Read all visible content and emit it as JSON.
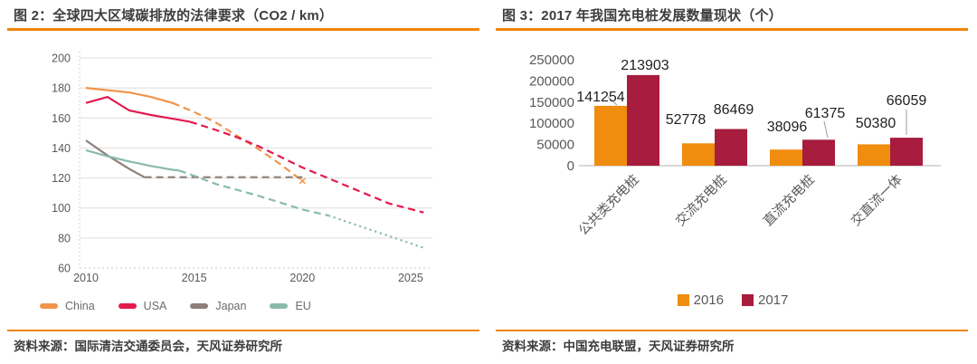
{
  "accent_color": "#F0840A",
  "left_panel": {
    "title": "图 2：全球四大区域碳排放的法律要求（CO2 / km）",
    "source": "资料来源：国际清洁交通委员会，天风证券研究所",
    "chart_data": {
      "type": "line",
      "title": "全球四大区域碳排放的法律要求（CO2 / km）",
      "xlabel": "",
      "ylabel": "",
      "xlim": [
        2009.6,
        2026.2
      ],
      "ylim": [
        60,
        200
      ],
      "yticks": [
        60,
        80,
        100,
        120,
        140,
        160,
        180,
        200
      ],
      "xticks": [
        2010,
        2015,
        2020,
        2025
      ],
      "grid": "horizontal",
      "legend_position": "bottom-left",
      "series": [
        {
          "name": "China",
          "color": "#F0944A",
          "end_marker": "x",
          "segments": [
            {
              "style": "solid",
              "points": [
                [
                  2010,
                  180
                ],
                [
                  2011,
                  178.5
                ],
                [
                  2012,
                  177
                ],
                [
                  2013,
                  174
                ],
                [
                  2014,
                  170
                ]
              ]
            },
            {
              "style": "dashed",
              "points": [
                [
                  2014,
                  170
                ],
                [
                  2015,
                  164
                ],
                [
                  2016,
                  157
                ],
                [
                  2017,
                  148
                ],
                [
                  2018,
                  139
                ],
                [
                  2019,
                  129
                ],
                [
                  2020,
                  118
                ]
              ]
            }
          ]
        },
        {
          "name": "USA",
          "color": "#E41A4D",
          "segments": [
            {
              "style": "solid",
              "points": [
                [
                  2010,
                  170
                ],
                [
                  2011,
                  174
                ],
                [
                  2012,
                  165
                ],
                [
                  2013,
                  162
                ],
                [
                  2014,
                  159.5
                ],
                [
                  2014.8,
                  157.5
                ]
              ]
            },
            {
              "style": "dashed",
              "points": [
                [
                  2014.8,
                  157.5
                ],
                [
                  2016,
                  152
                ],
                [
                  2017,
                  147
                ],
                [
                  2018,
                  141
                ],
                [
                  2019,
                  134
                ],
                [
                  2020,
                  127
                ],
                [
                  2021,
                  121
                ],
                [
                  2022,
                  115
                ],
                [
                  2023,
                  109
                ],
                [
                  2024,
                  103
                ],
                [
                  2025.6,
                  97
                ]
              ]
            }
          ]
        },
        {
          "name": "Japan",
          "color": "#8C8078",
          "segments": [
            {
              "style": "solid",
              "points": [
                [
                  2010,
                  145
                ],
                [
                  2011,
                  135
                ],
                [
                  2012,
                  126
                ],
                [
                  2012.7,
                  120.5
                ]
              ]
            },
            {
              "style": "dashed",
              "points": [
                [
                  2012.7,
                  120.5
                ],
                [
                  2020,
                  120.5
                ]
              ]
            }
          ]
        },
        {
          "name": "EU",
          "color": "#8ABAAC",
          "segments": [
            {
              "style": "solid",
              "points": [
                [
                  2010,
                  138.5
                ],
                [
                  2011,
                  134.5
                ],
                [
                  2012,
                  131
                ],
                [
                  2013,
                  128
                ],
                [
                  2014,
                  125.5
                ],
                [
                  2014.3,
                  125
                ]
              ]
            },
            {
              "style": "dashed",
              "points": [
                [
                  2014.3,
                  125
                ],
                [
                  2015,
                  121.5
                ],
                [
                  2016,
                  116
                ],
                [
                  2017,
                  112
                ],
                [
                  2018,
                  108
                ],
                [
                  2019,
                  103.5
                ],
                [
                  2020,
                  99
                ],
                [
                  2021.2,
                  95
                ]
              ]
            },
            {
              "style": "dotted",
              "points": [
                [
                  2021.2,
                  95
                ],
                [
                  2025.7,
                  73
                ]
              ]
            }
          ]
        }
      ]
    }
  },
  "right_panel": {
    "title": "图 3：2017 年我国充电桩发展数量现状（个）",
    "source": "资料来源：中国充电联盟，天风证券研究所",
    "chart_data": {
      "type": "bar",
      "title": "2017 年我国充电桩发展数量现状（个）",
      "categories": [
        "公共类充电桩",
        "交流充电桩",
        "直流充电桩",
        "交直流一体"
      ],
      "series": [
        {
          "name": "2016",
          "color": "#F08C0E",
          "values": [
            141254,
            52778,
            38096,
            50380
          ]
        },
        {
          "name": "2017",
          "color": "#A81C3D",
          "values": [
            213903,
            86469,
            61375,
            66059
          ]
        }
      ],
      "ylim": [
        0,
        250000
      ],
      "yticks": [
        0,
        50000,
        100000,
        150000,
        200000,
        250000
      ],
      "grid": "off",
      "legend_position": "bottom-center",
      "data_labels": true
    }
  }
}
